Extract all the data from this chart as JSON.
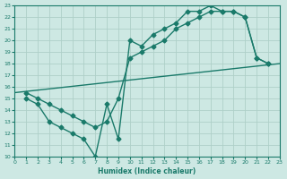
{
  "xlabel": "Humidex (Indice chaleur)",
  "bg_color": "#cde8e3",
  "grid_color": "#aed0c8",
  "line_color": "#1a7a6a",
  "xlim": [
    0,
    23
  ],
  "ylim": [
    10,
    23
  ],
  "xticks": [
    0,
    1,
    2,
    3,
    4,
    5,
    6,
    7,
    8,
    9,
    10,
    11,
    12,
    13,
    14,
    15,
    16,
    17,
    18,
    19,
    20,
    21,
    22,
    23
  ],
  "yticks": [
    10,
    11,
    12,
    13,
    14,
    15,
    16,
    17,
    18,
    19,
    20,
    21,
    22,
    23
  ],
  "line1_x": [
    1,
    2,
    3,
    4,
    5,
    6,
    7,
    8,
    9,
    10,
    11,
    12,
    13,
    14,
    15,
    16,
    17,
    18,
    19,
    20,
    21,
    22
  ],
  "line1_y": [
    15,
    14.5,
    13,
    12.5,
    12,
    11.5,
    10,
    14.5,
    11.5,
    20,
    19.5,
    20.5,
    21,
    21.5,
    22.5,
    22.5,
    23,
    22.5,
    22.5,
    22,
    18.5,
    18
  ],
  "line2_x": [
    1,
    2,
    3,
    4,
    5,
    6,
    7,
    8,
    9,
    10,
    11,
    12,
    13,
    14,
    15,
    16,
    17,
    18,
    19,
    20,
    21,
    22
  ],
  "line2_y": [
    15.5,
    15,
    14.5,
    14,
    13.5,
    13,
    12.5,
    13,
    15,
    18.5,
    19,
    19.5,
    20,
    21,
    21.5,
    22,
    22.5,
    22.5,
    22.5,
    22,
    18.5,
    18
  ],
  "line3_x": [
    0,
    23
  ],
  "line3_y": [
    15.5,
    18
  ],
  "marker": "D",
  "markersize": 2.5,
  "linewidth": 1.0
}
